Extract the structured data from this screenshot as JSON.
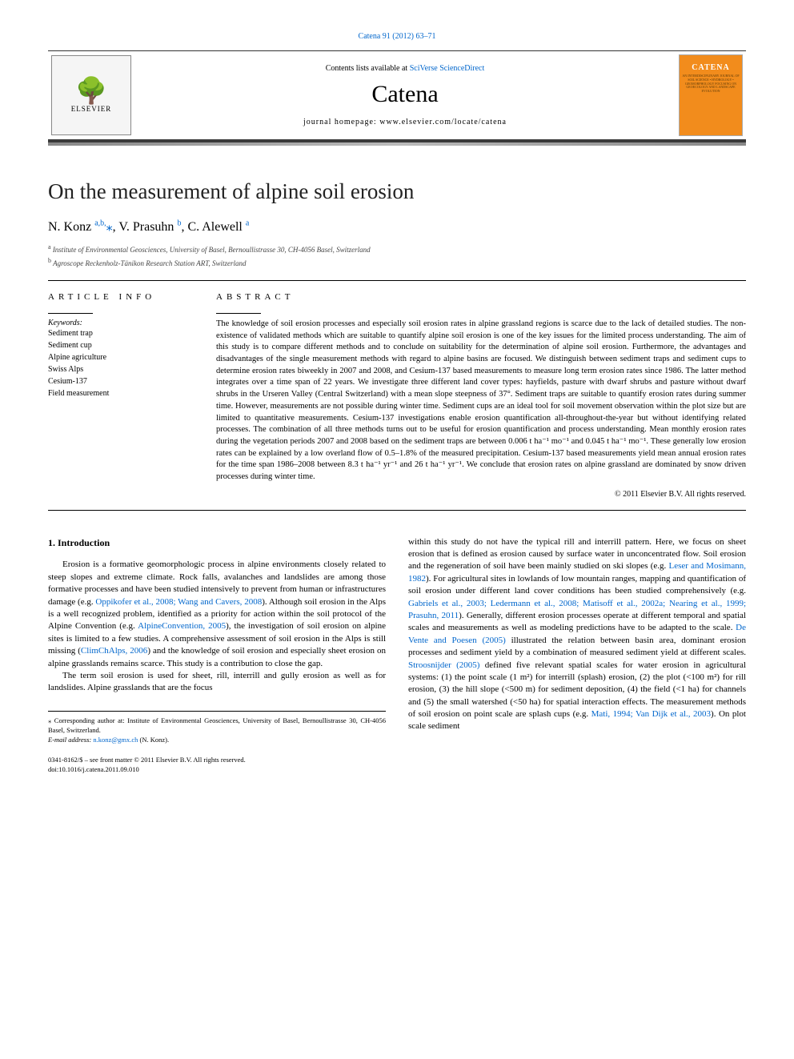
{
  "citation_link": "Catena 91 (2012) 63–71",
  "header": {
    "contents_text": "Contents lists available at ",
    "contents_link": "SciVerse ScienceDirect",
    "journal_name": "Catena",
    "homepage_label": "journal homepage: ",
    "homepage_url": "www.elsevier.com/locate/catena",
    "elsevier_label": "ELSEVIER",
    "cover_title": "CATENA",
    "cover_sub": "AN INTERDISCIPLINARY JOURNAL OF SOIL SCIENCE • HYDROLOGY • GEOMORPHOLOGY FOCUSING ON GEOECOLOGY AND LANDSCAPE EVOLUTION"
  },
  "article": {
    "title": "On the measurement of alpine soil erosion",
    "authors_html": "N. Konz <sup>a,b,</sup><span class='star'>⁎</span>, V. Prasuhn <sup>b</sup>, C. Alewell <sup>a</sup>",
    "affiliations": [
      {
        "sup": "a",
        "text": "Institute of Environmental Geosciences, University of Basel, Bernoullistrasse 30, CH-4056 Basel, Switzerland"
      },
      {
        "sup": "b",
        "text": "Agroscope Reckenholz-Tänikon Research Station ART, Switzerland"
      }
    ]
  },
  "info": {
    "heading": "article info",
    "keywords_label": "Keywords:",
    "keywords": [
      "Sediment trap",
      "Sediment cup",
      "Alpine agriculture",
      "Swiss Alps",
      "Cesium-137",
      "Field measurement"
    ]
  },
  "abstract": {
    "heading": "abstract",
    "text": "The knowledge of soil erosion processes and especially soil erosion rates in alpine grassland regions is scarce due to the lack of detailed studies. The non-existence of validated methods which are suitable to quantify alpine soil erosion is one of the key issues for the limited process understanding. The aim of this study is to compare different methods and to conclude on suitability for the determination of alpine soil erosion. Furthermore, the advantages and disadvantages of the single measurement methods with regard to alpine basins are focused. We distinguish between sediment traps and sediment cups to determine erosion rates biweekly in 2007 and 2008, and Cesium-137 based measurements to measure long term erosion rates since 1986. The latter method integrates over a time span of 22 years. We investigate three different land cover types: hayfields, pasture with dwarf shrubs and pasture without dwarf shrubs in the Urseren Valley (Central Switzerland) with a mean slope steepness of 37°. Sediment traps are suitable to quantify erosion rates during summer time. However, measurements are not possible during winter time. Sediment cups are an ideal tool for soil movement observation within the plot size but are limited to quantitative measurements. Cesium-137 investigations enable erosion quantification all-throughout-the-year but without identifying related processes. The combination of all three methods turns out to be useful for erosion quantification and process understanding. Mean monthly erosion rates during the vegetation periods 2007 and 2008 based on the sediment traps are between 0.006 t ha⁻¹ mo⁻¹ and 0.045 t ha⁻¹ mo⁻¹. These generally low erosion rates can be explained by a low overland flow of 0.5–1.8% of the measured precipitation. Cesium-137 based measurements yield mean annual erosion rates for the time span 1986–2008 between 8.3 t ha⁻¹ yr⁻¹ and 26 t ha⁻¹ yr⁻¹. We conclude that erosion rates on alpine grassland are dominated by snow driven processes during winter time.",
    "copyright": "© 2011 Elsevier B.V. All rights reserved."
  },
  "body": {
    "section_heading": "1. Introduction",
    "col1_p1": "Erosion is a formative geomorphologic process in alpine environments closely related to steep slopes and extreme climate. Rock falls, avalanches and landslides are among those formative processes and have been studied intensively to prevent from human or infrastructures damage (e.g. <span class='ref-link'>Oppikofer et al., 2008; Wang and Cavers, 2008</span>). Although soil erosion in the Alps is a well recognized problem, identified as a priority for action within the soil protocol of the Alpine Convention (e.g. <span class='ref-link'>AlpineConvention, 2005</span>), the investigation of soil erosion on alpine sites is limited to a few studies. A comprehensive assessment of soil erosion in the Alps is still missing (<span class='ref-link'>ClimChAlps, 2006</span>) and the knowledge of soil erosion and especially sheet erosion on alpine grasslands remains scarce. This study is a contribution to close the gap.",
    "col1_p2": "The term soil erosion is used for sheet, rill, interrill and gully erosion as well as for landslides. Alpine grasslands that are the focus",
    "col2_p1": "within this study do not have the typical rill and interrill pattern. Here, we focus on sheet erosion that is defined as erosion caused by surface water in unconcentrated flow. Soil erosion and the regeneration of soil have been mainly studied on ski slopes (e.g. <span class='ref-link'>Leser and Mosimann, 1982</span>). For agricultural sites in lowlands of low mountain ranges, mapping and quantification of soil erosion under different land cover conditions has been studied comprehensively (e.g. <span class='ref-link'>Gabriels et al., 2003; Ledermann et al., 2008; Matisoff et al., 2002a; Nearing et al., 1999; Prasuhn, 2011</span>). Generally, different erosion processes operate at different temporal and spatial scales and measurements as well as modeling predictions have to be adapted to the scale. <span class='ref-link'>De Vente and Poesen (2005)</span> illustrated the relation between basin area, dominant erosion processes and sediment yield by a combination of measured sediment yield at different scales. <span class='ref-link'>Stroosnijder (2005)</span> defined five relevant spatial scales for water erosion in agricultural systems: (1) the point scale (1 m²) for interrill (splash) erosion, (2) the plot (<100 m²) for rill erosion, (3) the hill slope (<500 m) for sediment deposition, (4) the field (<1 ha) for channels and (5) the small watershed (<50 ha) for spatial interaction effects. The measurement methods of soil erosion on point scale are splash cups (e.g. <span class='ref-link'>Mati, 1994; Van Dijk et al., 2003</span>). On plot scale sediment"
  },
  "footer": {
    "corresponding": "⁎ Corresponding author at: Institute of Environmental Geosciences, University of Basel, Bernoullistrasse 30, CH-4056 Basel, Switzerland.",
    "email_label": "E-mail address: ",
    "email": "n.konz@gmx.ch",
    "email_suffix": " (N. Konz).",
    "issn_line": "0341-8162/$ – see front matter © 2011 Elsevier B.V. All rights reserved.",
    "doi_line": "doi:10.1016/j.catena.2011.09.010"
  }
}
